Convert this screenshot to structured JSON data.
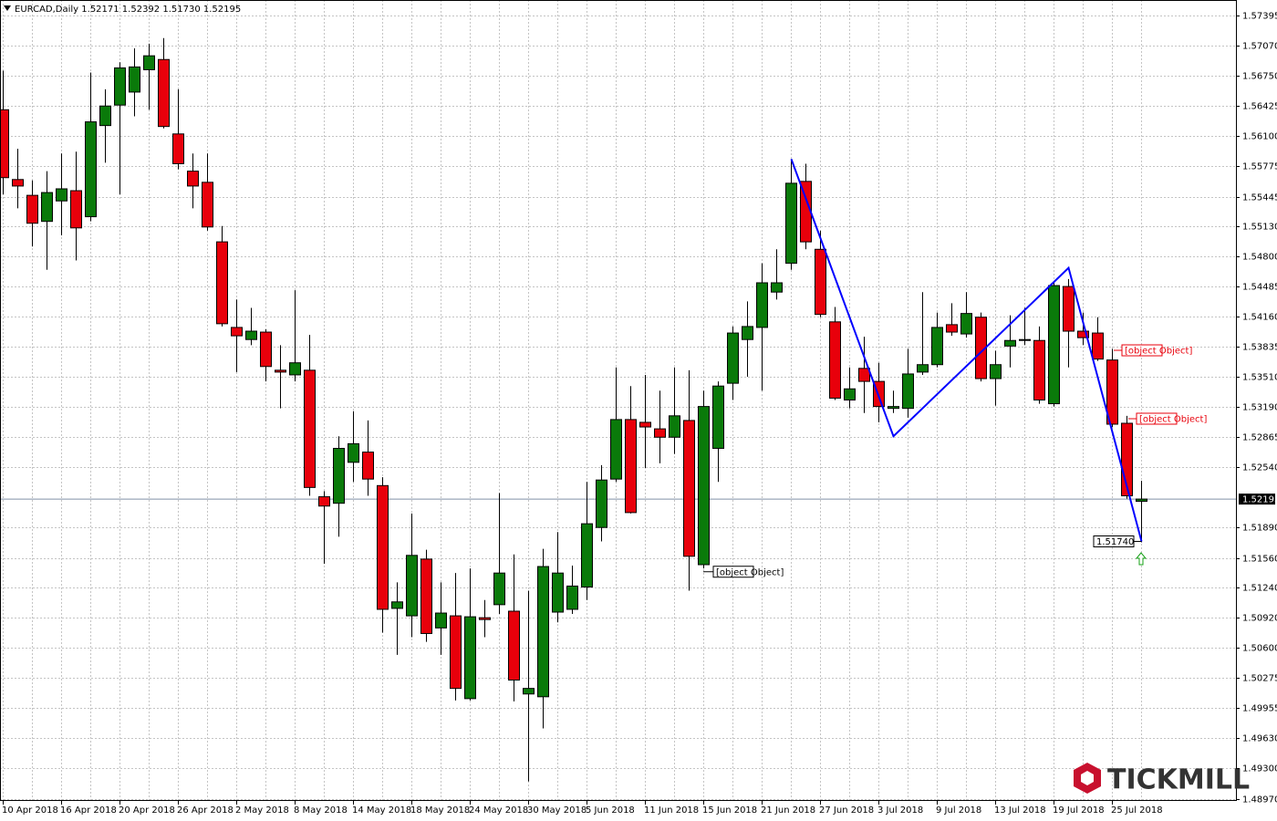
{
  "chart_data": {
    "type": "candlestick",
    "title": "EURCAD,Daily 1.52171 1.52392 1.51730 1.52195",
    "categories": [
      "10 Apr 2018",
      null,
      null,
      null,
      "16 Apr 2018",
      null,
      null,
      null,
      "20 Apr 2018",
      null,
      null,
      null,
      "26 Apr 2018",
      null,
      null,
      null,
      "2 May 2018",
      null,
      null,
      null,
      "8 May 2018",
      null,
      null,
      null,
      "14 May 2018",
      null,
      null,
      null,
      "18 May 2018",
      null,
      null,
      null,
      "24 May 2018",
      null,
      null,
      null,
      "30 May 2018",
      null,
      null,
      null,
      "5 Jun 2018",
      null,
      null,
      null,
      "11 Jun 2018",
      null,
      null,
      null,
      "15 Jun 2018",
      null,
      null,
      null,
      "21 Jun 2018",
      null,
      null,
      null,
      "27 Jun 2018",
      null,
      null,
      null,
      "3 Jul 2018",
      null,
      null,
      null,
      "9 Jul 2018",
      null,
      null,
      null,
      "13 Jul 2018",
      null,
      null,
      null,
      "19 Jul 2018",
      null,
      null,
      null,
      "25 Jul 2018",
      null,
      null
    ],
    "open": [
      1.5638,
      1.5563,
      1.5546,
      1.5518,
      1.554,
      1.5551,
      1.5523,
      1.5621,
      1.5643,
      1.5657,
      1.5681,
      1.5692,
      1.5612,
      1.5572,
      1.556,
      1.5496,
      1.5404,
      1.5391,
      1.5399,
      1.5358,
      1.5353,
      1.5358,
      1.5222,
      1.5215,
      1.5259,
      1.527,
      1.5234,
      1.5102,
      1.5094,
      1.5155,
      1.5081,
      1.5094,
      1.5005,
      1.5092,
      1.5106,
      1.5099,
      1.501,
      1.5007,
      1.5098,
      1.5101,
      1.5125,
      1.5189,
      1.5241,
      1.5305,
      1.5302,
      1.5295,
      1.5286,
      1.5304,
      1.5149,
      1.5274,
      1.5344,
      1.5391,
      1.5404,
      1.5442,
      1.5473,
      1.5561,
      1.5488,
      1.541,
      1.5326,
      1.536,
      1.5346,
      1.5317,
      1.5317,
      1.5356,
      1.5364,
      1.5407,
      1.5397,
      1.5415,
      1.5349,
      1.5384,
      1.539,
      1.539,
      1.5322,
      1.5448,
      1.54,
      1.5398,
      1.5369,
      1.5301,
      1.52171
    ],
    "high": [
      1.568,
      1.5596,
      1.5562,
      1.5572,
      1.5591,
      1.5593,
      1.5678,
      1.566,
      1.5689,
      1.5704,
      1.5709,
      1.5715,
      1.566,
      1.5591,
      1.5591,
      1.5513,
      1.5434,
      1.5425,
      1.5402,
      1.5385,
      1.5444,
      1.5396,
      1.5228,
      1.5287,
      1.5314,
      1.5304,
      1.5243,
      1.513,
      1.5204,
      1.5165,
      1.513,
      1.514,
      1.5145,
      1.5111,
      1.5226,
      1.516,
      1.5121,
      1.5166,
      1.5184,
      1.5148,
      1.5238,
      1.5256,
      1.5361,
      1.5341,
      1.5353,
      1.5336,
      1.5361,
      1.5358,
      1.5336,
      1.5346,
      1.5405,
      1.5432,
      1.5473,
      1.5488,
      1.5585,
      1.558,
      1.5508,
      1.5426,
      1.5361,
      1.5394,
      1.5366,
      1.5336,
      1.5381,
      1.5442,
      1.542,
      1.543,
      1.5442,
      1.542,
      1.5379,
      1.5417,
      1.5425,
      1.5405,
      1.5454,
      1.5456,
      1.542,
      1.5415,
      1.5381,
      1.5309,
      1.52392
    ],
    "low": [
      1.5547,
      1.5532,
      1.5491,
      1.5466,
      1.5503,
      1.5476,
      1.5518,
      1.5581,
      1.5547,
      1.5631,
      1.5638,
      1.5618,
      1.5574,
      1.5532,
      1.5508,
      1.5405,
      1.5356,
      1.5385,
      1.5346,
      1.5317,
      1.5346,
      1.5223,
      1.515,
      1.5179,
      1.5238,
      1.5223,
      1.5076,
      1.5052,
      1.5071,
      1.5066,
      1.5052,
      1.5003,
      1.5003,
      1.5071,
      1.5096,
      1.5002,
      1.4916,
      1.4973,
      1.5087,
      1.5096,
      1.5111,
      1.5174,
      1.5238,
      1.5204,
      1.5253,
      1.5258,
      1.5268,
      1.5121,
      1.5145,
      1.5238,
      1.5326,
      1.5351,
      1.5336,
      1.5434,
      1.5466,
      1.5488,
      1.5415,
      1.5326,
      1.5317,
      1.5312,
      1.5302,
      1.5312,
      1.5307,
      1.5353,
      1.5361,
      1.5395,
      1.5393,
      1.5346,
      1.532,
      1.5361,
      1.5385,
      1.5322,
      1.5319,
      1.5361,
      1.5385,
      1.5368,
      1.5297,
      1.522,
      1.5173
    ],
    "close": [
      1.5565,
      1.5556,
      1.5516,
      1.5549,
      1.5553,
      1.5511,
      1.5625,
      1.5642,
      1.5683,
      1.5684,
      1.5696,
      1.562,
      1.558,
      1.5556,
      1.5512,
      1.5408,
      1.5395,
      1.54,
      1.5362,
      1.5356,
      1.5366,
      1.5232,
      1.5212,
      1.5274,
      1.5279,
      1.5241,
      1.5101,
      1.5109,
      1.5159,
      1.5075,
      1.5097,
      1.5016,
      1.5093,
      1.509,
      1.514,
      1.5025,
      1.5016,
      1.5147,
      1.514,
      1.5126,
      1.5193,
      1.524,
      1.5305,
      1.5205,
      1.5297,
      1.5286,
      1.5309,
      1.5158,
      1.5319,
      1.5341,
      1.5398,
      1.5405,
      1.5452,
      1.5452,
      1.5559,
      1.5496,
      1.5418,
      1.5328,
      1.5338,
      1.5346,
      1.5319,
      1.5319,
      1.5354,
      1.5364,
      1.5404,
      1.5399,
      1.5419,
      1.5349,
      1.5364,
      1.539,
      1.5391,
      1.5326,
      1.5449,
      1.54,
      1.5393,
      1.537,
      1.53,
      1.5223,
      1.52195
    ],
    "up_color": "#0a7a0a",
    "down_color": "#e8000b",
    "ylim": [
      1.4897,
      1.5754
    ],
    "yticks": [
      1.57395,
      {
        "value": 1.5707,
        "label": "1.57070"
      },
      {
        "value": 1.5675,
        "label": "1.56750"
      },
      1.56425,
      {
        "value": 1.561,
        "label": "1.56100"
      },
      1.55775,
      1.55445,
      {
        "value": 1.5513,
        "label": "1.55130"
      },
      {
        "value": 1.548,
        "label": "1.54800"
      },
      1.54485,
      {
        "value": 1.5416,
        "label": "1.54160"
      },
      1.53835,
      {
        "value": 1.5351,
        "label": "1.53510"
      },
      {
        "value": 1.5319,
        "label": "1.53190"
      },
      1.52865,
      {
        "value": 1.5254,
        "label": "1.52540"
      },
      {
        "value": 1.5189,
        "label": "1.51890"
      },
      {
        "value": 1.5156,
        "label": "1.51560"
      },
      {
        "value": 1.5124,
        "label": "1.51240"
      },
      {
        "value": 1.5092,
        "label": "1.50920"
      },
      {
        "value": 1.506,
        "label": "1.50600"
      },
      1.50275,
      1.49955,
      {
        "value": 1.4963,
        "label": "1.49630"
      },
      {
        "value": 1.493,
        "label": "1.49300"
      },
      {
        "value": 1.4897,
        "label": "1.48970"
      }
    ],
    "grid": true,
    "last_price": 1.52195,
    "price_labels": [
      {
        "value": 1.53794,
        "color": "#e8000b"
      },
      {
        "value": 1.53059,
        "color": "#e8000b"
      },
      {
        "value": 1.5174,
        "label": "1.51740",
        "color": "#000000"
      },
      {
        "value": 1.51414,
        "color": "#000000"
      }
    ],
    "zigzag": {
      "color": "#0000ff",
      "index": [
        54,
        61,
        73,
        78
      ],
      "values": [
        1.5585,
        1.5287,
        1.5468,
        1.5174
      ]
    },
    "watermark": "TICKMILL"
  }
}
